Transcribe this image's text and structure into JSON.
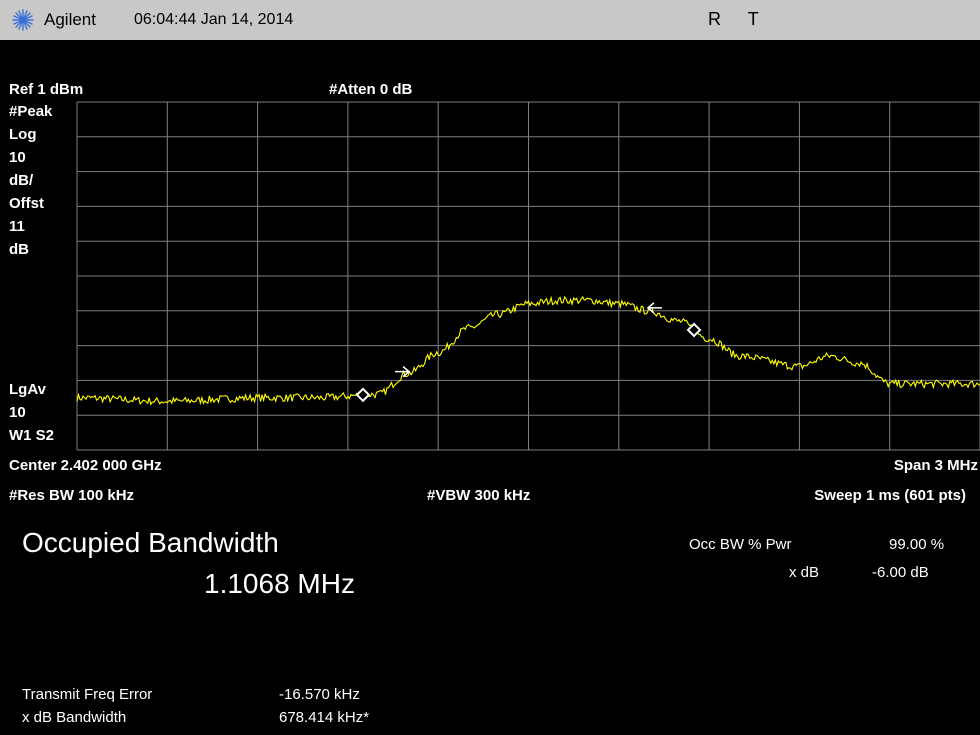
{
  "header": {
    "brand": "Agilent",
    "timestamp": "06:04:44  Jan 14, 2014",
    "indicators": [
      "R",
      "T"
    ]
  },
  "settings": {
    "ref_level": "Ref 1 dBm",
    "attenuation": "#Atten 0 dB",
    "left_labels": [
      "#Peak",
      "Log",
      "10",
      "dB/",
      "Offst",
      "11",
      "dB"
    ],
    "avg_labels": [
      "LgAv",
      "10",
      "W1  S2"
    ],
    "center": "Center 2.402 000 GHz",
    "span": "Span 3 MHz",
    "res_bw": "#Res BW 100 kHz",
    "vbw": "#VBW 300 kHz",
    "sweep": "Sweep 1 ms (601 pts)"
  },
  "measurement": {
    "title": "Occupied Bandwidth",
    "value": "1.1068 MHz",
    "occ_bw_label": "Occ BW % Pwr",
    "occ_bw_value": "99.00 %",
    "xdb_label": "x dB",
    "xdb_value": "-6.00 dB",
    "tx_freq_error_label": "Transmit Freq Error",
    "tx_freq_error_value": "-16.570 kHz",
    "xdb_bandwidth_label": "x dB Bandwidth",
    "xdb_bandwidth_value": "678.414 kHz*"
  },
  "colors": {
    "background": "#000000",
    "trace": "#ffff00",
    "grid": "#808080",
    "titlebar": "#c8c8c8",
    "text": "#ffffff"
  },
  "chart_data": {
    "type": "line",
    "xlabel": "",
    "ylabel": "",
    "x": [
      2.4005,
      2.4008,
      2.4011,
      2.4013,
      2.4015,
      2.4016,
      2.4017,
      2.4018,
      2.4019,
      2.402,
      2.4021,
      2.4022,
      2.4023,
      2.4024,
      2.4025,
      2.4026,
      2.4027,
      2.4029,
      2.403,
      2.4031,
      2.4032,
      2.4035
    ],
    "series": [
      {
        "values": [
          -84,
          -85,
          -84,
          -84,
          -83,
          -77,
          -71,
          -64,
          -60,
          -57,
          -56,
          -56,
          -57,
          -59,
          -62,
          -67,
          -72,
          -75,
          -72,
          -74,
          -80,
          -80
        ]
      }
    ],
    "xlim": [
      2.4005,
      2.4035
    ],
    "ylim": [
      -99,
      1
    ],
    "markers_x": [
      2.40145,
      2.40255
    ],
    "arrows_x": [
      2.40158,
      2.40242
    ]
  }
}
